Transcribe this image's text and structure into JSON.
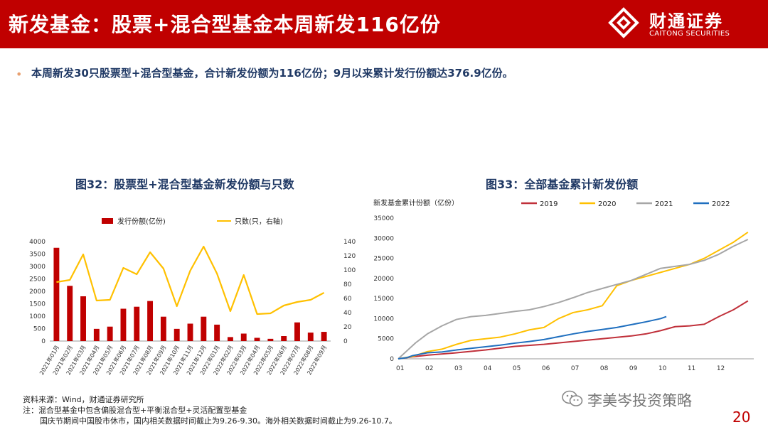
{
  "header": {
    "title": "新发基金：股票+混合型基金本周新发116亿份",
    "logo_cn": "财通证券",
    "logo_en": "CAITONG SECURITIES",
    "bg_color": "#c00000"
  },
  "bullet": {
    "text": "本周新发30只股票型+混合型基金，合计新发份额为116亿份；9月以来累计发行份额达376.9亿份。"
  },
  "figure32": {
    "title": "图32：股票型+混合型基金新发份额与只数"
  },
  "figure33": {
    "title": "图33：全部基金累计新发份额"
  },
  "chart_data": [
    {
      "type": "bar",
      "title": "图32：股票型+混合型基金新发份额与只数",
      "categories": [
        "2021年01月",
        "2021年02月",
        "2021年03月",
        "2021年04月",
        "2021年05月",
        "2021年06月",
        "2021年07月",
        "2021年08月",
        "2021年09月",
        "2021年10月",
        "2021年11月",
        "2021年12月",
        "2022年01月",
        "2022年02月",
        "2022年03月",
        "2022年04月",
        "2022年05月",
        "2022年06月",
        "2022年07月",
        "2022年08月",
        "2022年09月"
      ],
      "series": [
        {
          "name": "发行份额(亿份)",
          "kind": "bar",
          "axis": "left",
          "color": "#c00000",
          "values": [
            3750,
            2220,
            1800,
            490,
            580,
            1300,
            1380,
            1610,
            980,
            490,
            700,
            980,
            660,
            160,
            300,
            130,
            90,
            200,
            750,
            340,
            370
          ]
        },
        {
          "name": "只数(只，右轴)",
          "kind": "line",
          "axis": "right",
          "color": "#ffc000",
          "values": [
            83,
            86,
            122,
            57,
            58,
            103,
            94,
            125,
            102,
            49,
            99,
            133,
            95,
            42,
            93,
            38,
            39,
            50,
            55,
            58,
            68
          ]
        }
      ],
      "left_ylim": [
        0,
        4000
      ],
      "left_ticks": [
        "0",
        "500",
        "1000",
        "1500",
        "2000",
        "2500",
        "3000",
        "3500",
        "4000"
      ],
      "right_ylim": [
        0,
        140
      ],
      "right_ticks": [
        "0",
        "20",
        "40",
        "60",
        "80",
        "100",
        "120",
        "140"
      ],
      "legend": [
        "发行份额(亿份)",
        "只数(只，右轴)"
      ]
    },
    {
      "type": "line",
      "title": "图33：全部基金累计新发份额",
      "ylabel": "新发基金累计份额（亿份）",
      "x_ticks": [
        "01",
        "02",
        "03",
        "04",
        "05",
        "06",
        "07",
        "08",
        "09",
        "10",
        "11",
        "12"
      ],
      "ylim": [
        0,
        35000
      ],
      "y_ticks": [
        "0",
        "5000",
        "10000",
        "15000",
        "20000",
        "25000",
        "30000",
        "35000"
      ],
      "series": [
        {
          "name": "2019",
          "color": "#c0303a",
          "x": [
            0,
            0.5,
            1,
            2,
            3,
            4,
            5,
            6,
            7,
            8,
            8.5,
            9,
            9.5,
            10,
            10.5,
            11,
            11.5,
            12.0
          ],
          "y": [
            0,
            500,
            900,
            1500,
            2200,
            3100,
            3600,
            4300,
            5000,
            5700,
            6200,
            7000,
            8000,
            8200,
            8600,
            10500,
            12200,
            14400
          ]
        },
        {
          "name": "2020",
          "color": "#ffc000",
          "x": [
            0,
            0.5,
            1,
            1.5,
            2,
            2.5,
            3,
            3.5,
            4,
            4.5,
            5,
            5.5,
            6,
            6.5,
            7,
            7.5,
            8,
            8.5,
            9,
            9.5,
            10,
            10.5,
            11,
            11.5,
            12.0
          ],
          "y": [
            0,
            600,
            1800,
            2400,
            3600,
            4600,
            5000,
            5400,
            6200,
            7200,
            7800,
            10000,
            11500,
            12200,
            13200,
            18200,
            19500,
            20500,
            21500,
            22500,
            23500,
            25000,
            27000,
            29000,
            31500
          ]
        },
        {
          "name": "2021",
          "color": "#a6a6a6",
          "x": [
            0,
            0.3,
            0.6,
            1,
            1.5,
            2,
            2.5,
            3,
            3.5,
            4,
            4.5,
            5,
            5.5,
            6,
            6.5,
            7,
            7.5,
            8,
            8.5,
            9,
            9.5,
            10,
            10.5,
            11,
            11.5,
            12.0
          ],
          "y": [
            0,
            2000,
            4000,
            6200,
            8200,
            9800,
            10500,
            10800,
            11300,
            11800,
            12200,
            13000,
            14000,
            15200,
            16500,
            17500,
            18500,
            19500,
            21000,
            22500,
            23000,
            23500,
            24500,
            26000,
            28000,
            29700
          ]
        },
        {
          "name": "2022",
          "color": "#1f6fbf",
          "x": [
            0,
            0.3,
            0.5,
            1,
            1.5,
            2,
            2.5,
            3,
            3.5,
            4,
            4.5,
            5,
            5.5,
            6,
            6.5,
            7,
            7.5,
            8,
            8.5,
            9,
            9.2
          ],
          "y": [
            0,
            300,
            800,
            1500,
            1700,
            2200,
            2600,
            3000,
            3400,
            3900,
            4300,
            4800,
            5500,
            6200,
            6800,
            7300,
            7800,
            8500,
            9200,
            10000,
            10500
          ]
        }
      ]
    }
  ],
  "notes": {
    "source": "资料来源：Wind，财通证券研究所",
    "note1": "注：混合型基金中包含偏股混合型+平衡混合型+灵活配置型基金",
    "note2": "国庆节期间中国股市休市，国内相关数据时间截止为9.26-9.30。海外相关数据时间截止为9.26-10.7。"
  },
  "watermark": {
    "text": "李美岑投资策略"
  },
  "page": {
    "number": "20"
  }
}
